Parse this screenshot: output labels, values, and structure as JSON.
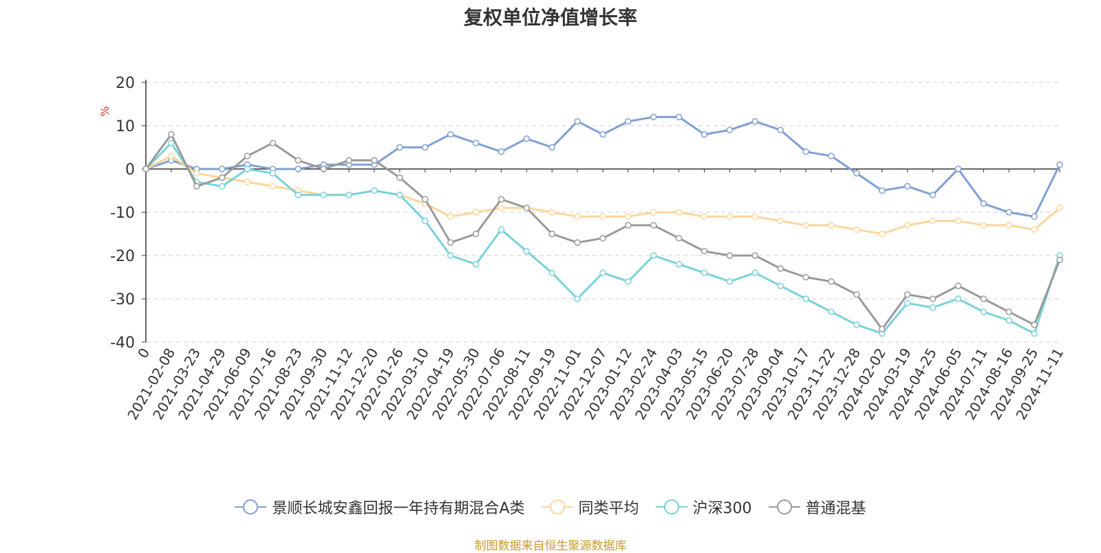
{
  "title": "复权单位净值增长率",
  "source_note": "制图数据来自恒生聚源数据库",
  "chart_data": {
    "type": "line",
    "title": "复权单位净值增长率",
    "ylabel": "%",
    "ylim": [
      -40,
      20
    ],
    "yticks": [
      20,
      10,
      0,
      -10,
      -20,
      -30,
      -40
    ],
    "grid": true,
    "legend_position": "bottom-center",
    "x": [
      "0",
      "2021-02-08",
      "2021-03-23",
      "2021-04-29",
      "2021-06-09",
      "2021-07-16",
      "2021-08-23",
      "2021-09-30",
      "2021-11-12",
      "2021-12-20",
      "2022-01-26",
      "2022-03-10",
      "2022-04-19",
      "2022-05-30",
      "2022-07-06",
      "2022-08-11",
      "2022-09-19",
      "2022-11-01",
      "2022-12-07",
      "2023-01-12",
      "2023-02-24",
      "2023-04-03",
      "2023-05-15",
      "2023-06-20",
      "2023-07-28",
      "2023-09-04",
      "2023-10-17",
      "2023-11-22",
      "2023-12-28",
      "2024-02-02",
      "2024-03-19",
      "2024-04-25",
      "2024-06-05",
      "2024-07-11",
      "2024-08-16",
      "2024-09-25",
      "2024-11-11"
    ],
    "series": [
      {
        "name": "景顺长城安鑫回报一年持有期混合A类",
        "color": "#7f9fd6",
        "values": [
          0,
          2,
          0,
          0,
          1,
          0,
          0,
          1,
          1,
          1,
          5,
          5,
          8,
          6,
          4,
          7,
          5,
          11,
          8,
          11,
          12,
          12,
          8,
          9,
          11,
          9,
          4,
          3,
          -1,
          -5,
          -4,
          -6,
          0,
          -8,
          -10,
          -11,
          1
        ]
      },
      {
        "name": "同类平均",
        "color": "#fdd59b",
        "values": [
          0,
          3,
          -1,
          -2,
          -3,
          -4,
          -5,
          -6,
          -6,
          -5,
          -6,
          -8,
          -11,
          -10,
          -9,
          -9,
          -10,
          -11,
          -11,
          -11,
          -10,
          -10,
          -11,
          -11,
          -11,
          -12,
          -13,
          -13,
          -14,
          -15,
          -13,
          -12,
          -12,
          -13,
          -13,
          -14,
          -9
        ]
      },
      {
        "name": "沪深300",
        "color": "#78d2d9",
        "values": [
          0,
          6,
          -3,
          -4,
          0,
          -1,
          -6,
          -6,
          -6,
          -5,
          -6,
          -12,
          -20,
          -22,
          -14,
          -19,
          -24,
          -30,
          -24,
          -26,
          -20,
          -22,
          -24,
          -26,
          -24,
          -27,
          -30,
          -33,
          -36,
          -38,
          -31,
          -32,
          -30,
          -33,
          -35,
          -38,
          -20
        ]
      },
      {
        "name": "普通混基",
        "color": "#999999",
        "values": [
          0,
          8,
          -4,
          -2,
          3,
          6,
          2,
          0,
          2,
          2,
          -2,
          -7,
          -17,
          -15,
          -7,
          -9,
          -15,
          -17,
          -16,
          -13,
          -13,
          -16,
          -19,
          -20,
          -20,
          -23,
          -25,
          -26,
          -29,
          -37,
          -29,
          -30,
          -27,
          -30,
          -33,
          -36,
          -21
        ]
      }
    ]
  }
}
